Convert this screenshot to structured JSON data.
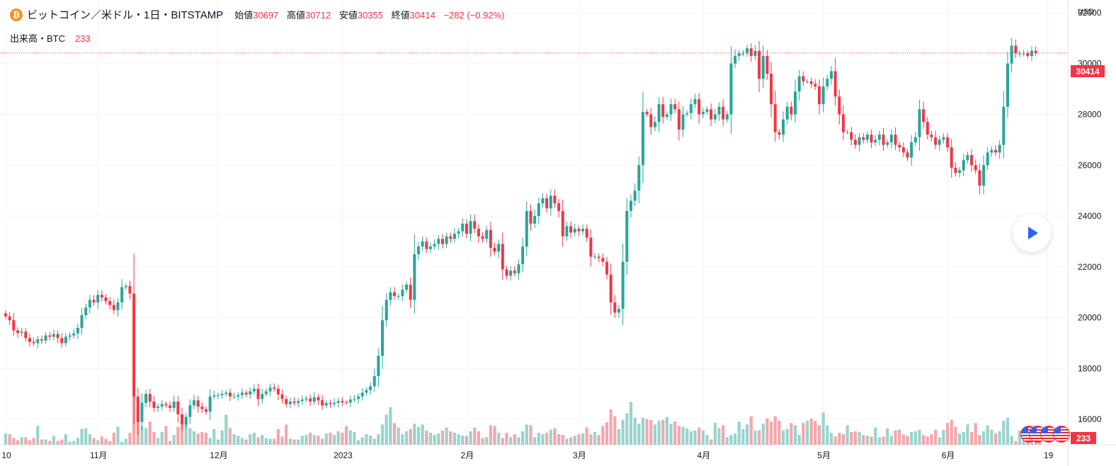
{
  "legend": {
    "coin_glyph": "₿",
    "symbol": "ビットコイン／米ドル・1日・BITSTAMP",
    "open_label": "始値",
    "open": "30697",
    "high_label": "高値",
    "high": "30712",
    "low_label": "安値",
    "low": "30355",
    "close_label": "終値",
    "close": "30414",
    "change": "−282 (−0.92%)",
    "volume_label": "出来高・BTC",
    "volume": "233"
  },
  "axis": {
    "currency": "USD",
    "current_price_label": "30414",
    "current_volume_label": "233"
  },
  "colors": {
    "up": "#26a69a",
    "down": "#f23645",
    "up_vol": "#9ad3cd",
    "down_vol": "#f4a7ab",
    "grid": "#f0f3fa"
  },
  "icons": [
    "bitcoin-icon",
    "play-icon",
    "us-flag-icon"
  ],
  "chart_data": {
    "type": "candlestick",
    "x_ticks": [
      "10",
      "11月",
      "12月",
      "2023",
      "2月",
      "3月",
      "4月",
      "5月",
      "6月",
      "19"
    ],
    "x_tick_indices": [
      0,
      23,
      53,
      84,
      115,
      143,
      174,
      204,
      235,
      260
    ],
    "y_ticks": [
      16000,
      18000,
      20000,
      22000,
      24000,
      26000,
      28000,
      30000,
      32000
    ],
    "ylim": [
      15000,
      32500
    ],
    "current_price": 30414,
    "close": [
      20050,
      19900,
      19500,
      19400,
      19450,
      19200,
      19050,
      19000,
      19150,
      19100,
      19300,
      19250,
      19350,
      19200,
      19000,
      19250,
      19300,
      19380,
      19600,
      20100,
      20400,
      20700,
      20600,
      20900,
      20800,
      20650,
      20500,
      20300,
      20600,
      21200,
      21250,
      20950,
      16900,
      15900,
      16650,
      17000,
      16700,
      16450,
      16500,
      16600,
      16550,
      16450,
      16700,
      16200,
      15800,
      16100,
      16550,
      16750,
      16500,
      16400,
      16300,
      16900,
      16950,
      16950,
      17000,
      17050,
      16900,
      16900,
      16950,
      17050,
      16980,
      17100,
      17200,
      16800,
      17000,
      17100,
      17250,
      17200,
      16980,
      16800,
      16600,
      16700,
      16650,
      16720,
      16780,
      16820,
      16700,
      16870,
      16750,
      16550,
      16640,
      16600,
      16650,
      16720,
      16670,
      16660,
      16780,
      16800,
      16900,
      17050,
      17150,
      17300,
      17700,
      18500,
      19900,
      20700,
      21000,
      20850,
      20850,
      21100,
      21300,
      20700,
      22500,
      22800,
      23000,
      22700,
      22800,
      22900,
      23100,
      22900,
      23200,
      23100,
      23300,
      23400,
      23700,
      23300,
      23800,
      23500,
      23200,
      23100,
      23450,
      22750,
      22600,
      22900,
      21900,
      21650,
      21850,
      21750,
      22100,
      22800,
      24200,
      23700,
      24000,
      24500,
      24700,
      24300,
      24800,
      24500,
      24200,
      23200,
      23600,
      23350,
      23500,
      23400,
      23500,
      23150,
      22400,
      22400,
      22350,
      22200,
      21700,
      20600,
      20200,
      20350,
      22200,
      24200,
      24600,
      25000,
      26000,
      28100,
      28000,
      27500,
      27700,
      28400,
      27900,
      28000,
      28400,
      28200,
      27400,
      28000,
      28050,
      28400,
      28600,
      28000,
      28100,
      28200,
      27800,
      28000,
      28300,
      27800,
      28000,
      30000,
      30300,
      30400,
      30400,
      30600,
      30300,
      30500,
      29400,
      30300,
      29600,
      28400,
      27300,
      27200,
      27800,
      28300,
      28000,
      28900,
      29500,
      29300,
      29300,
      29200,
      29100,
      28400,
      29100,
      29400,
      29700,
      28700,
      28000,
      27300,
      27300,
      27000,
      26800,
      27100,
      27000,
      27200,
      26900,
      27000,
      27200,
      26800,
      26900,
      27200,
      26800,
      26700,
      26500,
      26300,
      26900,
      27100,
      28200,
      27700,
      27200,
      27100,
      26800,
      27000,
      27100,
      26700,
      25900,
      25700,
      25800,
      26200,
      26400,
      26000,
      25800,
      25200,
      26000,
      26500,
      26600,
      26500,
      26800,
      28300,
      30000,
      30700,
      30400,
      30400,
      30400,
      30300,
      30500,
      30414
    ],
    "volume_pct": [
      0.15,
      0.14,
      0.09,
      0.06,
      0.1,
      0.1,
      0.06,
      0.09,
      0.25,
      0.07,
      0.07,
      0.05,
      0.12,
      0.05,
      0.07,
      0.14,
      0.04,
      0.05,
      0.09,
      0.21,
      0.22,
      0.14,
      0.09,
      0.06,
      0.11,
      0.08,
      0.05,
      0.16,
      0.24,
      0.04,
      0.08,
      0.16,
      0.67,
      0.51,
      0.24,
      0.22,
      0.31,
      0.17,
      0.09,
      0.17,
      0.25,
      0.05,
      0.13,
      0.24,
      0.27,
      0.31,
      0.22,
      0.18,
      0.15,
      0.17,
      0.16,
      0.09,
      0.21,
      0.07,
      0.19,
      0.4,
      0.22,
      0.14,
      0.12,
      0.09,
      0.07,
      0.14,
      0.16,
      0.1,
      0.13,
      0.09,
      0.08,
      0.08,
      0.21,
      0.11,
      0.27,
      0.08,
      0.07,
      0.07,
      0.12,
      0.13,
      0.16,
      0.13,
      0.12,
      0.08,
      0.15,
      0.16,
      0.13,
      0.18,
      0.16,
      0.25,
      0.19,
      0.17,
      0.06,
      0.1,
      0.14,
      0.12,
      0.08,
      0.14,
      0.27,
      0.4,
      0.5,
      0.29,
      0.23,
      0.14,
      0.18,
      0.21,
      0.28,
      0.24,
      0.27,
      0.19,
      0.16,
      0.13,
      0.15,
      0.19,
      0.23,
      0.18,
      0.16,
      0.14,
      0.12,
      0.12,
      0.18,
      0.23,
      0.18,
      0.09,
      0.1,
      0.26,
      0.25,
      0.16,
      0.09,
      0.16,
      0.1,
      0.14,
      0.1,
      0.18,
      0.27,
      0.26,
      0.1,
      0.16,
      0.14,
      0.16,
      0.2,
      0.22,
      0.14,
      0.13,
      0.08,
      0.1,
      0.12,
      0.14,
      0.15,
      0.23,
      0.14,
      0.17,
      0.13,
      0.25,
      0.3,
      0.47,
      0.38,
      0.21,
      0.33,
      0.42,
      0.57,
      0.36,
      0.28,
      0.36,
      0.34,
      0.33,
      0.27,
      0.32,
      0.33,
      0.37,
      0.28,
      0.31,
      0.25,
      0.24,
      0.22,
      0.18,
      0.19,
      0.23,
      0.19,
      0.13,
      0.07,
      0.29,
      0.22,
      0.26,
      0.1,
      0.13,
      0.15,
      0.31,
      0.21,
      0.27,
      0.38,
      0.19,
      0.19,
      0.28,
      0.35,
      0.31,
      0.38,
      0.32,
      0.19,
      0.21,
      0.29,
      0.26,
      0.13,
      0.29,
      0.32,
      0.35,
      0.32,
      0.26,
      0.43,
      0.26,
      0.16,
      0.11,
      0.16,
      0.14,
      0.26,
      0.17,
      0.18,
      0.17,
      0.13,
      0.12,
      0.11,
      0.23,
      0.1,
      0.11,
      0.22,
      0.12,
      0.19,
      0.2,
      0.14,
      0.12,
      0.17,
      0.18,
      0.2,
      0.13,
      0.11,
      0.14,
      0.2,
      0.1,
      0.2,
      0.29,
      0.33,
      0.24,
      0.15,
      0.17,
      0.27,
      0.17,
      0.29,
      0.13,
      0.18,
      0.26,
      0.2,
      0.15,
      0.18,
      0.32,
      0.36,
      0.12,
      0.05,
      0.19,
      0.15,
      0.18,
      0.14,
      0.1,
      0.07
    ]
  }
}
